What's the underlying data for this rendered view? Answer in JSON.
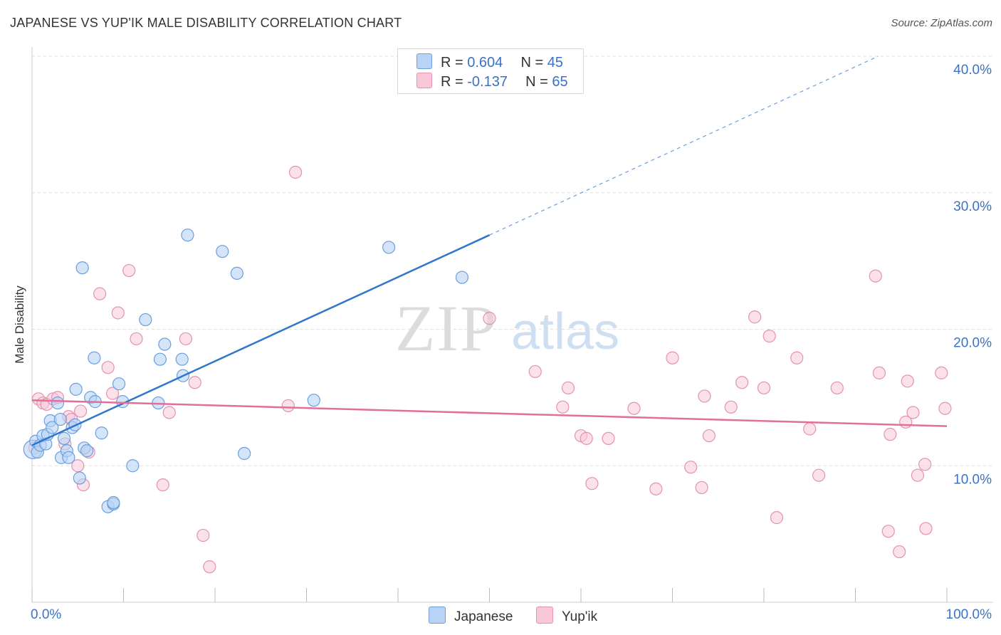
{
  "header": {
    "title": "JAPANESE VS YUP'IK MALE DISABILITY CORRELATION CHART",
    "source": "Source: ZipAtlas.com"
  },
  "watermark": {
    "zip": "ZIP",
    "atlas": "atlas"
  },
  "legend": {
    "japanese": {
      "r_label": "R =",
      "r_value": "0.604",
      "n_label": "N =",
      "n_value": "45"
    },
    "yupik": {
      "r_label": "R =",
      "r_value": "-0.137",
      "n_label": "N =",
      "n_value": "65"
    }
  },
  "colors": {
    "japanese_fill": "#b8d3f5",
    "japanese_stroke": "#6b9fdc",
    "japanese_line": "#2f76cc",
    "yupik_fill": "#f8c8d8",
    "yupik_stroke": "#e592b0",
    "yupik_line": "#e0709a",
    "tick_text": "#3a72c6",
    "grid": "#dddddd"
  },
  "chart_data": {
    "type": "scatter",
    "title": "JAPANESE VS YUP'IK MALE DISABILITY CORRELATION CHART",
    "xlabel": "",
    "ylabel": "Male Disability",
    "xlim": [
      0,
      100
    ],
    "ylim": [
      0,
      40
    ],
    "x_tick_labels": [
      "0.0%",
      "100.0%"
    ],
    "y_ticks": [
      10,
      20,
      30,
      40
    ],
    "y_tick_labels": [
      "10.0%",
      "20.0%",
      "30.0%",
      "40.0%"
    ],
    "series": [
      {
        "name": "Japanese",
        "points": [
          [
            0.1,
            11.2
          ],
          [
            0.4,
            11.8
          ],
          [
            0.6,
            11.0
          ],
          [
            0.9,
            11.5
          ],
          [
            1.2,
            12.2
          ],
          [
            1.5,
            11.6
          ],
          [
            1.7,
            12.3
          ],
          [
            2.0,
            13.3
          ],
          [
            2.2,
            12.8
          ],
          [
            2.8,
            14.6
          ],
          [
            3.1,
            13.4
          ],
          [
            3.2,
            10.6
          ],
          [
            3.5,
            12.0
          ],
          [
            3.8,
            11.1
          ],
          [
            4.0,
            10.6
          ],
          [
            4.4,
            12.8
          ],
          [
            4.7,
            13.0
          ],
          [
            4.8,
            15.6
          ],
          [
            5.2,
            9.1
          ],
          [
            5.5,
            24.5
          ],
          [
            5.7,
            11.3
          ],
          [
            6.0,
            11.1
          ],
          [
            6.4,
            15.0
          ],
          [
            6.8,
            17.9
          ],
          [
            6.9,
            14.7
          ],
          [
            7.6,
            12.4
          ],
          [
            8.3,
            7.0
          ],
          [
            8.9,
            7.2
          ],
          [
            8.9,
            7.3
          ],
          [
            9.5,
            16.0
          ],
          [
            9.9,
            14.7
          ],
          [
            11.0,
            10.0
          ],
          [
            12.4,
            20.7
          ],
          [
            13.8,
            14.6
          ],
          [
            14.0,
            17.8
          ],
          [
            14.5,
            18.9
          ],
          [
            16.4,
            17.8
          ],
          [
            16.5,
            16.6
          ],
          [
            17.0,
            26.9
          ],
          [
            20.8,
            25.7
          ],
          [
            22.4,
            24.1
          ],
          [
            23.2,
            10.9
          ],
          [
            30.8,
            14.8
          ],
          [
            39.0,
            26.0
          ],
          [
            47.0,
            23.8
          ]
        ]
      },
      {
        "name": "Yup'ik",
        "points": [
          [
            0.3,
            11.3
          ],
          [
            0.7,
            14.9
          ],
          [
            1.2,
            14.6
          ],
          [
            1.6,
            14.5
          ],
          [
            2.3,
            14.9
          ],
          [
            2.8,
            15.0
          ],
          [
            3.6,
            11.6
          ],
          [
            4.0,
            13.6
          ],
          [
            4.3,
            13.4
          ],
          [
            5.0,
            10.0
          ],
          [
            5.3,
            14.0
          ],
          [
            5.6,
            8.6
          ],
          [
            6.2,
            11.0
          ],
          [
            7.4,
            22.6
          ],
          [
            8.3,
            17.2
          ],
          [
            8.8,
            15.3
          ],
          [
            9.4,
            21.2
          ],
          [
            10.6,
            24.3
          ],
          [
            11.4,
            19.3
          ],
          [
            14.3,
            8.6
          ],
          [
            15.0,
            13.9
          ],
          [
            16.8,
            19.3
          ],
          [
            17.8,
            16.1
          ],
          [
            18.7,
            4.9
          ],
          [
            19.4,
            2.6
          ],
          [
            28.0,
            14.4
          ],
          [
            28.8,
            31.5
          ],
          [
            50.0,
            20.8
          ],
          [
            55.0,
            16.9
          ],
          [
            58.0,
            14.3
          ],
          [
            58.6,
            15.7
          ],
          [
            60.0,
            12.2
          ],
          [
            60.6,
            12.0
          ],
          [
            61.2,
            8.7
          ],
          [
            63.0,
            12.0
          ],
          [
            65.8,
            14.2
          ],
          [
            68.2,
            8.3
          ],
          [
            70.0,
            17.9
          ],
          [
            72.0,
            9.9
          ],
          [
            73.2,
            8.4
          ],
          [
            73.5,
            15.1
          ],
          [
            74.0,
            12.2
          ],
          [
            76.4,
            14.3
          ],
          [
            77.6,
            16.1
          ],
          [
            79.0,
            20.9
          ],
          [
            80.0,
            15.7
          ],
          [
            80.6,
            19.5
          ],
          [
            81.4,
            6.2
          ],
          [
            83.6,
            17.9
          ],
          [
            85.0,
            12.7
          ],
          [
            86.0,
            9.3
          ],
          [
            88.0,
            15.7
          ],
          [
            92.2,
            23.9
          ],
          [
            92.6,
            16.8
          ],
          [
            93.6,
            5.2
          ],
          [
            93.8,
            12.3
          ],
          [
            94.8,
            3.7
          ],
          [
            95.5,
            13.2
          ],
          [
            95.7,
            16.2
          ],
          [
            96.3,
            13.9
          ],
          [
            96.8,
            9.3
          ],
          [
            97.6,
            10.1
          ],
          [
            97.7,
            5.4
          ],
          [
            99.4,
            16.8
          ],
          [
            99.8,
            14.2
          ]
        ]
      }
    ],
    "trendlines": [
      {
        "series": "Japanese",
        "x_start": 0,
        "y_start": 11.5,
        "x_solid_end": 50,
        "y_solid_end": 26.9,
        "x_dashed_end": 92.5,
        "y_dashed_end": 40.0
      },
      {
        "series": "Yup'ik",
        "x_start": 0,
        "y_start": 14.8,
        "x_end": 100,
        "y_end": 12.9
      }
    ],
    "legend": [
      "Japanese",
      "Yup'ik"
    ],
    "grid": true
  }
}
